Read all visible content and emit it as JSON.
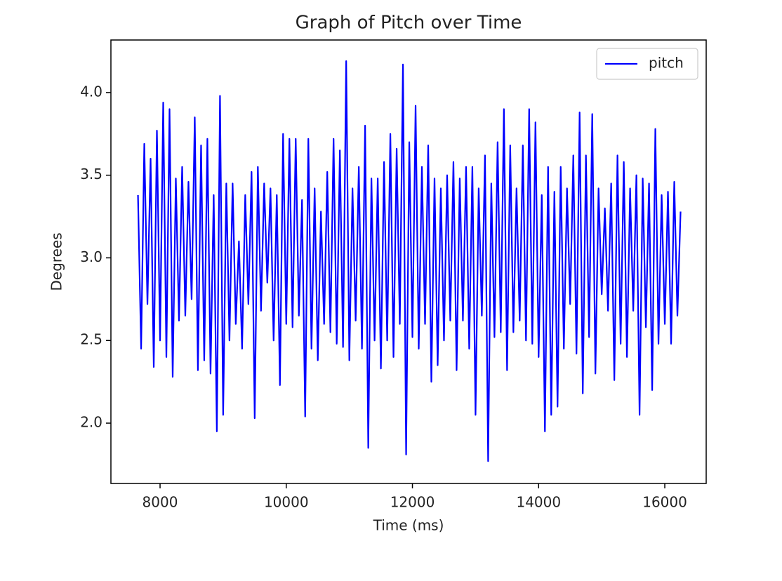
{
  "chart_data": {
    "type": "line",
    "title": "Graph of Pitch over Time",
    "x_label": "Time (ms)",
    "y_label": "Degrees",
    "x": [
      7650,
      7700,
      7750,
      7800,
      7850,
      7900,
      7950,
      8000,
      8050,
      8100,
      8150,
      8200,
      8250,
      8300,
      8350,
      8400,
      8450,
      8500,
      8550,
      8600,
      8650,
      8700,
      8750,
      8800,
      8850,
      8900,
      8950,
      9000,
      9050,
      9100,
      9150,
      9200,
      9250,
      9300,
      9350,
      9400,
      9450,
      9500,
      9550,
      9600,
      9650,
      9700,
      9750,
      9800,
      9850,
      9900,
      9950,
      10000,
      10050,
      10100,
      10150,
      10200,
      10250,
      10300,
      10350,
      10400,
      10450,
      10500,
      10550,
      10600,
      10650,
      10700,
      10750,
      10800,
      10850,
      10900,
      10950,
      11000,
      11050,
      11100,
      11150,
      11200,
      11250,
      11300,
      11350,
      11400,
      11450,
      11500,
      11550,
      11600,
      11650,
      11700,
      11750,
      11800,
      11850,
      11900,
      11950,
      12000,
      12050,
      12100,
      12150,
      12200,
      12250,
      12300,
      12350,
      12400,
      12450,
      12500,
      12550,
      12600,
      12650,
      12700,
      12750,
      12800,
      12850,
      12900,
      12950,
      13000,
      13050,
      13100,
      13150,
      13200,
      13250,
      13300,
      13350,
      13400,
      13450,
      13500,
      13550,
      13600,
      13650,
      13700,
      13750,
      13800,
      13850,
      13900,
      13950,
      14000,
      14050,
      14100,
      14150,
      14200,
      14250,
      14300,
      14350,
      14400,
      14450,
      14500,
      14550,
      14600,
      14650,
      14700,
      14750,
      14800,
      14850,
      14900,
      14950,
      15000,
      15050,
      15100,
      15150,
      15200,
      15250,
      15300,
      15350,
      15400,
      15450,
      15500,
      15550,
      15600,
      15650,
      15700,
      15750,
      15800,
      15850,
      15900,
      15950,
      16000,
      16050,
      16100,
      16150,
      16200,
      16250
    ],
    "series": [
      {
        "name": "pitch",
        "color": "#0000ff",
        "values": [
          3.38,
          2.45,
          3.69,
          2.72,
          3.6,
          2.34,
          3.77,
          2.5,
          3.94,
          2.4,
          3.9,
          2.28,
          3.48,
          2.62,
          3.55,
          2.65,
          3.46,
          2.75,
          3.85,
          2.32,
          3.68,
          2.38,
          3.72,
          2.3,
          3.38,
          1.95,
          3.98,
          2.05,
          3.45,
          2.5,
          3.45,
          2.6,
          3.1,
          2.45,
          3.38,
          2.72,
          3.52,
          2.03,
          3.55,
          2.68,
          3.45,
          2.85,
          3.42,
          2.5,
          3.38,
          2.23,
          3.75,
          2.6,
          3.72,
          2.58,
          3.72,
          2.65,
          3.35,
          2.04,
          3.72,
          2.45,
          3.42,
          2.38,
          3.28,
          2.6,
          3.52,
          2.55,
          3.72,
          2.48,
          3.65,
          2.46,
          4.19,
          2.38,
          3.42,
          2.62,
          3.55,
          2.45,
          3.8,
          1.85,
          3.48,
          2.5,
          3.48,
          2.33,
          3.58,
          2.5,
          3.75,
          2.4,
          3.66,
          2.6,
          4.17,
          1.81,
          3.7,
          2.52,
          3.92,
          2.45,
          3.55,
          2.6,
          3.68,
          2.25,
          3.48,
          2.35,
          3.42,
          2.5,
          3.5,
          2.62,
          3.58,
          2.32,
          3.48,
          2.62,
          3.55,
          2.45,
          3.55,
          2.05,
          3.42,
          2.65,
          3.62,
          1.77,
          3.45,
          2.52,
          3.7,
          2.55,
          3.9,
          2.32,
          3.68,
          2.55,
          3.42,
          2.62,
          3.68,
          2.5,
          3.9,
          2.48,
          3.82,
          2.4,
          3.38,
          1.95,
          3.55,
          2.05,
          3.4,
          2.1,
          3.55,
          2.45,
          3.42,
          2.72,
          3.62,
          2.42,
          3.88,
          2.18,
          3.62,
          2.52,
          3.87,
          2.3,
          3.42,
          2.78,
          3.3,
          2.68,
          3.45,
          2.26,
          3.62,
          2.48,
          3.58,
          2.4,
          3.42,
          2.68,
          3.5,
          2.05,
          3.48,
          2.58,
          3.45,
          2.2,
          3.78,
          2.48,
          3.38,
          2.6,
          3.4,
          2.48,
          3.46,
          2.65,
          3.28
        ]
      }
    ],
    "xlim": [
      7221,
      16656
    ],
    "ylim": [
      1.635,
      4.318
    ],
    "xticks": [
      8000,
      10000,
      12000,
      14000,
      16000
    ],
    "yticks": [
      {
        "value": 2,
        "label": "2.0"
      },
      {
        "value": 2.5,
        "label": "2.5"
      },
      {
        "value": 3,
        "label": "3.0"
      },
      {
        "value": 3.5,
        "label": "3.5"
      },
      {
        "value": 4,
        "label": "4.0"
      }
    ],
    "legend": "upper right"
  }
}
